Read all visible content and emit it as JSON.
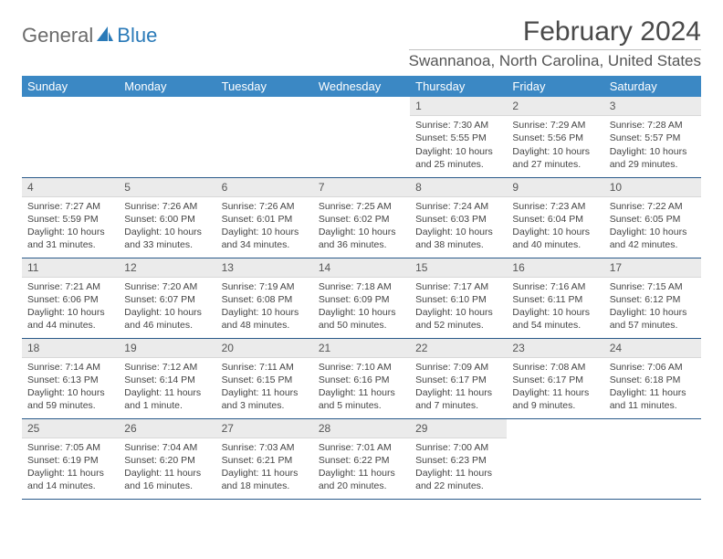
{
  "logo": {
    "text1": "General",
    "text2": "Blue"
  },
  "title": "February 2024",
  "location": "Swannanoa, North Carolina, United States",
  "colors": {
    "header_bg": "#3b88c4",
    "header_text": "#ffffff",
    "daynum_bg": "#ebebeb",
    "row_border": "#2a5a8a",
    "logo_gray": "#6b6b6b",
    "logo_blue": "#2a7ab8"
  },
  "weekdays": [
    "Sunday",
    "Monday",
    "Tuesday",
    "Wednesday",
    "Thursday",
    "Friday",
    "Saturday"
  ],
  "first_weekday_index": 4,
  "days_in_month": 29,
  "days": {
    "1": {
      "sunrise": "7:30 AM",
      "sunset": "5:55 PM",
      "daylight": "10 hours and 25 minutes."
    },
    "2": {
      "sunrise": "7:29 AM",
      "sunset": "5:56 PM",
      "daylight": "10 hours and 27 minutes."
    },
    "3": {
      "sunrise": "7:28 AM",
      "sunset": "5:57 PM",
      "daylight": "10 hours and 29 minutes."
    },
    "4": {
      "sunrise": "7:27 AM",
      "sunset": "5:59 PM",
      "daylight": "10 hours and 31 minutes."
    },
    "5": {
      "sunrise": "7:26 AM",
      "sunset": "6:00 PM",
      "daylight": "10 hours and 33 minutes."
    },
    "6": {
      "sunrise": "7:26 AM",
      "sunset": "6:01 PM",
      "daylight": "10 hours and 34 minutes."
    },
    "7": {
      "sunrise": "7:25 AM",
      "sunset": "6:02 PM",
      "daylight": "10 hours and 36 minutes."
    },
    "8": {
      "sunrise": "7:24 AM",
      "sunset": "6:03 PM",
      "daylight": "10 hours and 38 minutes."
    },
    "9": {
      "sunrise": "7:23 AM",
      "sunset": "6:04 PM",
      "daylight": "10 hours and 40 minutes."
    },
    "10": {
      "sunrise": "7:22 AM",
      "sunset": "6:05 PM",
      "daylight": "10 hours and 42 minutes."
    },
    "11": {
      "sunrise": "7:21 AM",
      "sunset": "6:06 PM",
      "daylight": "10 hours and 44 minutes."
    },
    "12": {
      "sunrise": "7:20 AM",
      "sunset": "6:07 PM",
      "daylight": "10 hours and 46 minutes."
    },
    "13": {
      "sunrise": "7:19 AM",
      "sunset": "6:08 PM",
      "daylight": "10 hours and 48 minutes."
    },
    "14": {
      "sunrise": "7:18 AM",
      "sunset": "6:09 PM",
      "daylight": "10 hours and 50 minutes."
    },
    "15": {
      "sunrise": "7:17 AM",
      "sunset": "6:10 PM",
      "daylight": "10 hours and 52 minutes."
    },
    "16": {
      "sunrise": "7:16 AM",
      "sunset": "6:11 PM",
      "daylight": "10 hours and 54 minutes."
    },
    "17": {
      "sunrise": "7:15 AM",
      "sunset": "6:12 PM",
      "daylight": "10 hours and 57 minutes."
    },
    "18": {
      "sunrise": "7:14 AM",
      "sunset": "6:13 PM",
      "daylight": "10 hours and 59 minutes."
    },
    "19": {
      "sunrise": "7:12 AM",
      "sunset": "6:14 PM",
      "daylight": "11 hours and 1 minute."
    },
    "20": {
      "sunrise": "7:11 AM",
      "sunset": "6:15 PM",
      "daylight": "11 hours and 3 minutes."
    },
    "21": {
      "sunrise": "7:10 AM",
      "sunset": "6:16 PM",
      "daylight": "11 hours and 5 minutes."
    },
    "22": {
      "sunrise": "7:09 AM",
      "sunset": "6:17 PM",
      "daylight": "11 hours and 7 minutes."
    },
    "23": {
      "sunrise": "7:08 AM",
      "sunset": "6:17 PM",
      "daylight": "11 hours and 9 minutes."
    },
    "24": {
      "sunrise": "7:06 AM",
      "sunset": "6:18 PM",
      "daylight": "11 hours and 11 minutes."
    },
    "25": {
      "sunrise": "7:05 AM",
      "sunset": "6:19 PM",
      "daylight": "11 hours and 14 minutes."
    },
    "26": {
      "sunrise": "7:04 AM",
      "sunset": "6:20 PM",
      "daylight": "11 hours and 16 minutes."
    },
    "27": {
      "sunrise": "7:03 AM",
      "sunset": "6:21 PM",
      "daylight": "11 hours and 18 minutes."
    },
    "28": {
      "sunrise": "7:01 AM",
      "sunset": "6:22 PM",
      "daylight": "11 hours and 20 minutes."
    },
    "29": {
      "sunrise": "7:00 AM",
      "sunset": "6:23 PM",
      "daylight": "11 hours and 22 minutes."
    }
  },
  "labels": {
    "sunrise": "Sunrise:",
    "sunset": "Sunset:",
    "daylight": "Daylight:"
  }
}
